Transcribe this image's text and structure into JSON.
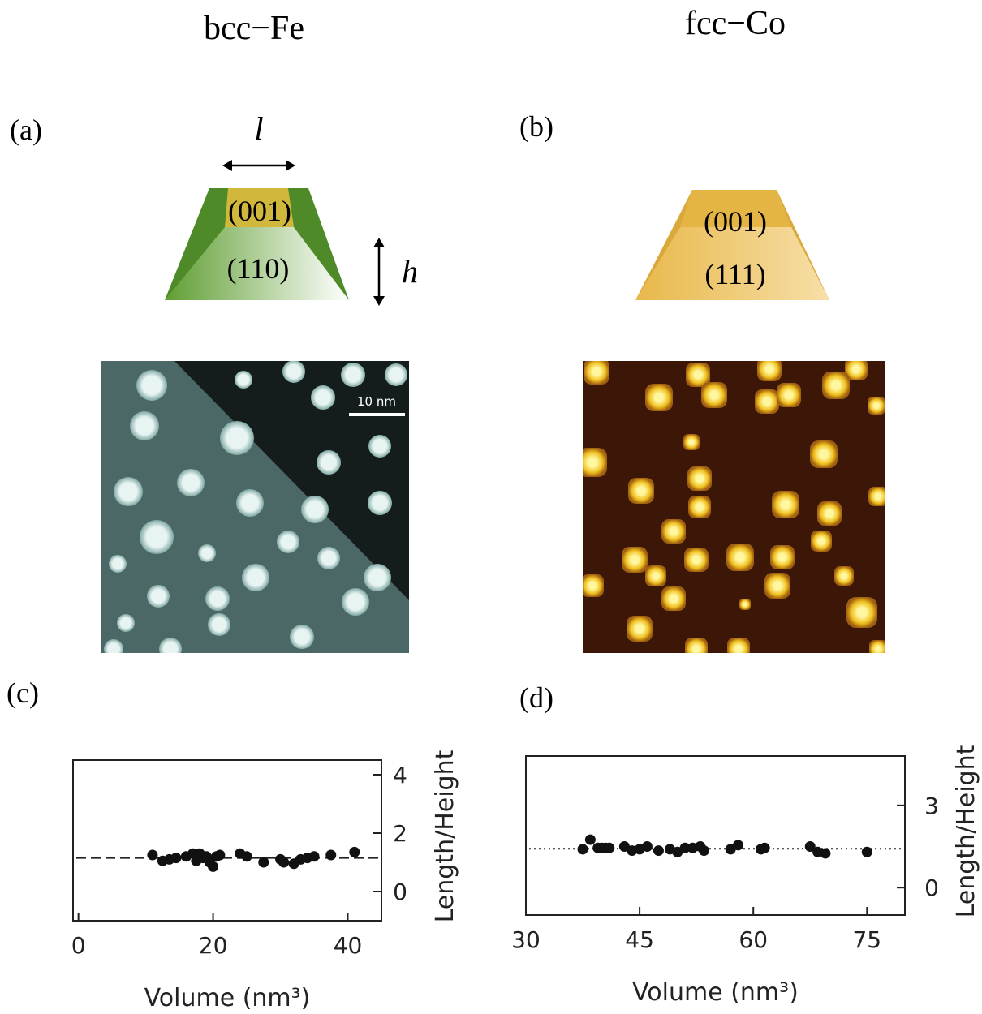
{
  "header": {
    "left_title": "bcc−Fe",
    "right_title": "fcc−Co"
  },
  "panels": {
    "a": "(a)",
    "b": "(b)",
    "c": "(c)",
    "d": "(d)"
  },
  "diagram_a": {
    "top_facet": "(001)",
    "side_facet": "(110)",
    "length_symbol": "l",
    "height_symbol": "h"
  },
  "diagram_b": {
    "top_facet": "(001)",
    "side_facet": "(111)"
  },
  "image_a": {
    "scale_bar": "10 nm"
  },
  "chart_data": [
    {
      "type": "scatter",
      "xlabel": "Volume (nm³)",
      "ylabel": "Length/Height",
      "color": "#111111",
      "x": [
        11,
        12.5,
        13.5,
        14.5,
        16,
        17,
        17.5,
        18,
        18.5,
        19,
        19.5,
        20,
        20.5,
        21,
        24,
        25,
        27.5,
        30,
        30.5,
        32,
        33,
        34,
        35,
        37.5,
        41
      ],
      "values": [
        1.25,
        1.05,
        1.1,
        1.15,
        1.2,
        1.3,
        1.05,
        1.3,
        1.15,
        1.2,
        1.0,
        0.85,
        1.2,
        1.25,
        1.3,
        1.2,
        1.0,
        1.1,
        1.0,
        0.95,
        1.1,
        1.15,
        1.2,
        1.25,
        1.35
      ],
      "reference_line": 1.15,
      "reference_style": "dashed",
      "xlim": [
        -0.8,
        45
      ],
      "ylim": [
        -1,
        4.5
      ],
      "xticks": [
        0,
        20,
        40
      ],
      "yticks": [
        0,
        2,
        4
      ],
      "yaxis_side": "right"
    },
    {
      "type": "scatter",
      "xlabel": "Volume (nm³)",
      "ylabel": "Length/Height",
      "color": "#111111",
      "x": [
        37.5,
        38.5,
        39.5,
        40,
        40.5,
        41,
        43,
        44,
        45,
        46,
        47.5,
        49,
        50,
        51,
        52,
        53,
        53.5,
        57,
        58,
        61,
        61.5,
        67.5,
        68.5,
        69.5,
        75
      ],
      "values": [
        1.4,
        1.75,
        1.45,
        1.45,
        1.45,
        1.45,
        1.5,
        1.35,
        1.4,
        1.5,
        1.35,
        1.4,
        1.3,
        1.45,
        1.45,
        1.5,
        1.35,
        1.4,
        1.55,
        1.4,
        1.45,
        1.5,
        1.3,
        1.25,
        1.3
      ],
      "reference_line": 1.42,
      "reference_style": "dotted",
      "xlim": [
        30,
        80
      ],
      "ylim": [
        -1,
        4.8
      ],
      "xticks": [
        30,
        45,
        60,
        75
      ],
      "yticks": [
        0,
        3
      ],
      "yaxis_side": "right"
    }
  ]
}
